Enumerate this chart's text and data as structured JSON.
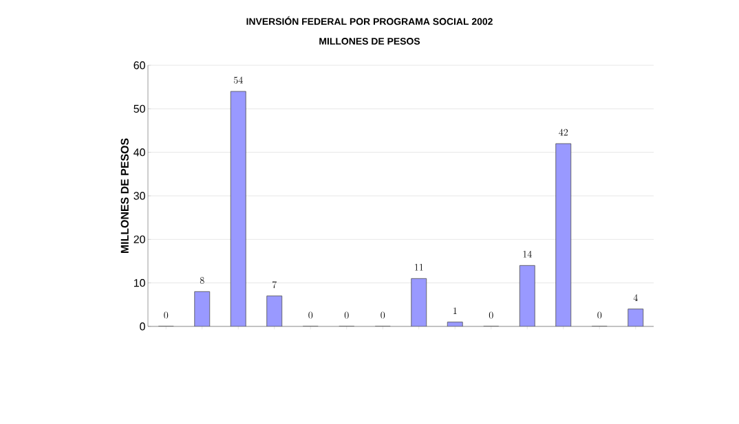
{
  "chart_data": {
    "type": "bar",
    "title": "INVERSIÓN FEDERAL POR PROGRAMA SOCIAL 2002",
    "subtitle": "MILLONES DE PESOS",
    "ylabel": "MILLONES DE PESOS",
    "categories": [
      null,
      null,
      null,
      null,
      null,
      null,
      null,
      null,
      null,
      null,
      null,
      null,
      null,
      null
    ],
    "values": [
      0,
      8,
      54,
      7,
      0,
      0,
      0,
      11,
      1,
      0,
      14,
      42,
      0,
      4
    ],
    "color": "#9999ff",
    "ylim": [
      0,
      60
    ],
    "yticks": [
      0,
      10,
      20,
      30,
      40,
      50,
      60
    ],
    "grid": "y",
    "data_labels": true
  }
}
